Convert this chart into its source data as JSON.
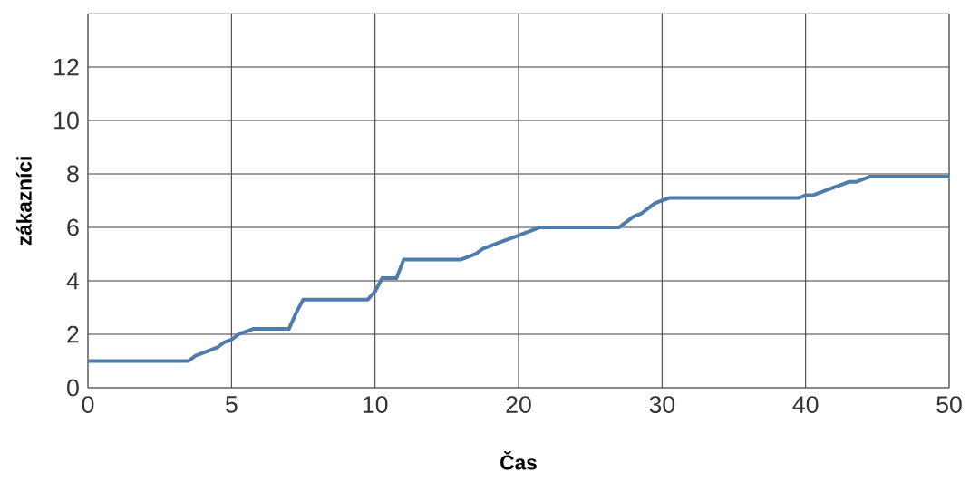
{
  "chart_data": {
    "type": "line",
    "xlabel": "Čas",
    "ylabel": "zákazníci",
    "color": "#4f7cae",
    "categories": [
      "0",
      null,
      null,
      null,
      null,
      null,
      null,
      null,
      null,
      null,
      null,
      null,
      null,
      null,
      null,
      null,
      null,
      null,
      null,
      null,
      "5",
      null,
      null,
      null,
      null,
      null,
      null,
      null,
      null,
      null,
      null,
      null,
      null,
      null,
      null,
      null,
      null,
      null,
      null,
      null,
      "10",
      null,
      null,
      null,
      null,
      null,
      null,
      null,
      null,
      null,
      null,
      null,
      null,
      null,
      null,
      null,
      null,
      null,
      null,
      null,
      "20",
      null,
      null,
      null,
      null,
      null,
      null,
      null,
      null,
      null,
      null,
      null,
      null,
      null,
      null,
      null,
      null,
      null,
      null,
      null,
      "30",
      null,
      null,
      null,
      null,
      null,
      null,
      null,
      null,
      null,
      null,
      null,
      null,
      null,
      null,
      null,
      null,
      null,
      null,
      null,
      "40",
      null,
      null,
      null,
      null,
      null,
      null,
      null,
      null,
      null,
      null,
      null,
      null,
      null,
      null,
      null,
      null,
      null,
      null,
      null,
      "50"
    ],
    "values": [
      1.0,
      1.0,
      1.0,
      1.0,
      1.0,
      1.0,
      1.0,
      1.0,
      1.0,
      1.0,
      1.0,
      1.0,
      1.0,
      1.0,
      1.0,
      1.2,
      1.3,
      1.4,
      1.5,
      1.7,
      1.8,
      2.0,
      2.1,
      2.2,
      2.2,
      2.2,
      2.2,
      2.2,
      2.2,
      2.8,
      3.3,
      3.3,
      3.3,
      3.3,
      3.3,
      3.3,
      3.3,
      3.3,
      3.3,
      3.3,
      3.6,
      4.1,
      4.1,
      4.1,
      4.8,
      4.8,
      4.8,
      4.8,
      4.8,
      4.8,
      4.8,
      4.8,
      4.8,
      4.9,
      5.0,
      5.2,
      5.3,
      5.4,
      5.5,
      5.6,
      5.7,
      5.8,
      5.9,
      6.0,
      6.0,
      6.0,
      6.0,
      6.0,
      6.0,
      6.0,
      6.0,
      6.0,
      6.0,
      6.0,
      6.0,
      6.2,
      6.4,
      6.5,
      6.7,
      6.9,
      7.0,
      7.1,
      7.1,
      7.1,
      7.1,
      7.1,
      7.1,
      7.1,
      7.1,
      7.1,
      7.1,
      7.1,
      7.1,
      7.1,
      7.1,
      7.1,
      7.1,
      7.1,
      7.1,
      7.1,
      7.2,
      7.2,
      7.3,
      7.4,
      7.5,
      7.6,
      7.7,
      7.7,
      7.8,
      7.9,
      7.9,
      7.9,
      7.9,
      7.9,
      7.9,
      7.9,
      7.9,
      7.9,
      7.9,
      7.9,
      7.9
    ],
    "ylim": [
      0,
      14
    ],
    "yticks": [
      0,
      2,
      4,
      6,
      8,
      10,
      12
    ],
    "grid": true,
    "marker": "none",
    "line_style": "solid"
  }
}
